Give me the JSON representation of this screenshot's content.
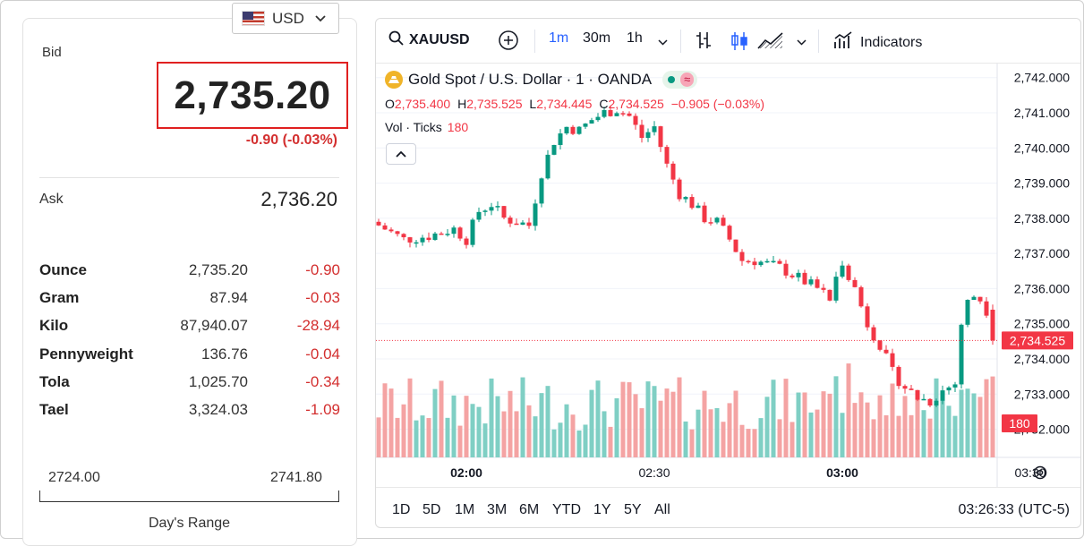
{
  "currency": {
    "code": "USD"
  },
  "quote": {
    "bid_label": "Bid",
    "bid": "2,735.20",
    "bid_change": "-0.90 (-0.03%)",
    "ask_label": "Ask",
    "ask": "2,736.20"
  },
  "units": [
    {
      "name": "Ounce",
      "price": "2,735.20",
      "change": "-0.90"
    },
    {
      "name": "Gram",
      "price": "87.94",
      "change": "-0.03"
    },
    {
      "name": "Kilo",
      "price": "87,940.07",
      "change": "-28.94"
    },
    {
      "name": "Pennyweight",
      "price": "136.76",
      "change": "-0.04"
    },
    {
      "name": "Tola",
      "price": "1,025.70",
      "change": "-0.34"
    },
    {
      "name": "Tael",
      "price": "3,324.03",
      "change": "-1.09"
    }
  ],
  "days_range": {
    "low": "2724.00",
    "high": "2741.80",
    "label": "Day's Range"
  },
  "toolbar": {
    "symbol": "XAUUSD",
    "intervals": [
      "1m",
      "30m",
      "1h"
    ],
    "active_interval": "1m",
    "indicators_label": "Indicators"
  },
  "legend": {
    "title": "Gold Spot / U.S. Dollar · 1 · OANDA",
    "o_label": "O",
    "o": "2,735.400",
    "h_label": "H",
    "h": "2,735.525",
    "l_label": "L",
    "l": "2,734.445",
    "c_label": "C",
    "c": "2,734.525",
    "change": "−0.905 (−0.03%)",
    "vol_label": "Vol · Ticks",
    "vol_value": "180"
  },
  "colors": {
    "up": "#089981",
    "down": "#f23645",
    "up_vol": "#7fcfc4",
    "down_vol": "#f4a3a3"
  },
  "time_ranges": [
    "1D",
    "5D",
    "1M",
    "3M",
    "6M",
    "YTD",
    "1Y",
    "5Y",
    "All"
  ],
  "clock": "03:26:33 (UTC-5)",
  "chart_data": {
    "type": "candlestick",
    "y_ticks": [
      "2,742.000",
      "2,741.000",
      "2,740.000",
      "2,739.000",
      "2,738.000",
      "2,737.000",
      "2,736.000",
      "2,735.000",
      "2,734.000",
      "2,733.000",
      "2,732.000"
    ],
    "ylim": [
      2731.2,
      2742.4
    ],
    "x_ticks": [
      {
        "label": "02:00",
        "minute": 14,
        "bold": true
      },
      {
        "label": "02:30",
        "minute": 44,
        "bold": false
      },
      {
        "label": "03:00",
        "minute": 74,
        "bold": true
      },
      {
        "label": "03:30",
        "minute": 104,
        "bold": false
      }
    ],
    "last_price": "2,734.525",
    "last_price_value": 2734.525,
    "last_volume": "180",
    "close_path": [
      [
        0,
        2737.8
      ],
      [
        4,
        2737.4
      ],
      [
        8,
        2737.5
      ],
      [
        12,
        2737.7
      ],
      [
        14,
        2737.4
      ],
      [
        16,
        2738.2
      ],
      [
        18,
        2738.4
      ],
      [
        20,
        2738.0
      ],
      [
        22,
        2737.9
      ],
      [
        24,
        2737.8
      ],
      [
        26,
        2739.3
      ],
      [
        28,
        2740.2
      ],
      [
        30,
        2740.6
      ],
      [
        32,
        2740.5
      ],
      [
        34,
        2740.8
      ],
      [
        36,
        2741.0
      ],
      [
        38,
        2741.1
      ],
      [
        40,
        2740.9
      ],
      [
        42,
        2740.3
      ],
      [
        44,
        2740.6
      ],
      [
        46,
        2739.5
      ],
      [
        48,
        2738.7
      ],
      [
        50,
        2738.4
      ],
      [
        52,
        2738.0
      ],
      [
        54,
        2737.9
      ],
      [
        56,
        2737.4
      ],
      [
        58,
        2736.8
      ],
      [
        60,
        2736.8
      ],
      [
        62,
        2736.7
      ],
      [
        64,
        2736.6
      ],
      [
        66,
        2736.4
      ],
      [
        68,
        2736.2
      ],
      [
        70,
        2736.0
      ],
      [
        72,
        2735.7
      ],
      [
        74,
        2736.8
      ],
      [
        76,
        2736.0
      ],
      [
        78,
        2735.0
      ],
      [
        80,
        2734.4
      ],
      [
        82,
        2733.6
      ],
      [
        84,
        2733.2
      ],
      [
        86,
        2732.9
      ],
      [
        88,
        2732.8
      ],
      [
        90,
        2733.1
      ],
      [
        92,
        2733.3
      ],
      [
        93,
        2735.0
      ],
      [
        94,
        2735.6
      ],
      [
        95,
        2735.8
      ],
      [
        96,
        2735.7
      ],
      [
        97,
        2735.4
      ],
      [
        98,
        2734.525
      ]
    ],
    "candles_total": 99
  }
}
